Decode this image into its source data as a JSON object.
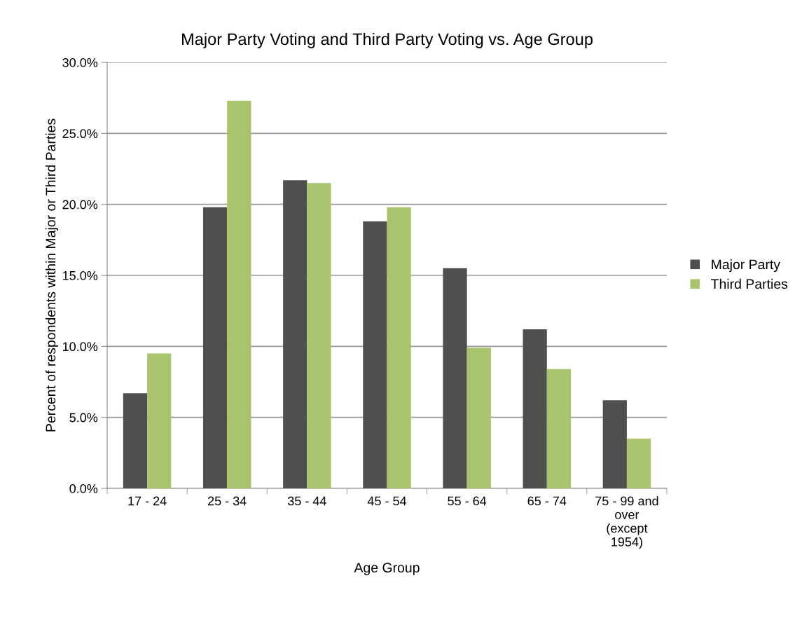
{
  "chart_data": {
    "type": "bar",
    "title": "Major Party Voting and Third Party Voting vs. Age Group",
    "xlabel": "Age Group",
    "ylabel": "Percent of respondents within Major or Third Parties",
    "categories": [
      "17 - 24",
      "25 - 34",
      "35 - 44",
      "45 - 54",
      "55 - 64",
      "65 - 74",
      "75 - 99 and\nover\n(except\n1954)"
    ],
    "series": [
      {
        "name": "Major Party",
        "color": "#4f4f4f",
        "values": [
          6.7,
          19.8,
          21.7,
          18.8,
          15.5,
          11.2,
          6.2
        ]
      },
      {
        "name": "Third Parties",
        "color": "#a9c46c",
        "values": [
          9.5,
          27.3,
          21.5,
          19.8,
          9.9,
          8.4,
          3.5
        ]
      }
    ],
    "ylim": [
      0,
      30
    ],
    "yticks": [
      {
        "value": 0,
        "label": "0.0%"
      },
      {
        "value": 5,
        "label": "5.0%"
      },
      {
        "value": 10,
        "label": "10.0%"
      },
      {
        "value": 15,
        "label": "15.0%"
      },
      {
        "value": 20,
        "label": "20.0%"
      },
      {
        "value": 25,
        "label": "25.0%"
      },
      {
        "value": 30,
        "label": "30.0%"
      }
    ],
    "grid": "y",
    "legend": "right"
  }
}
